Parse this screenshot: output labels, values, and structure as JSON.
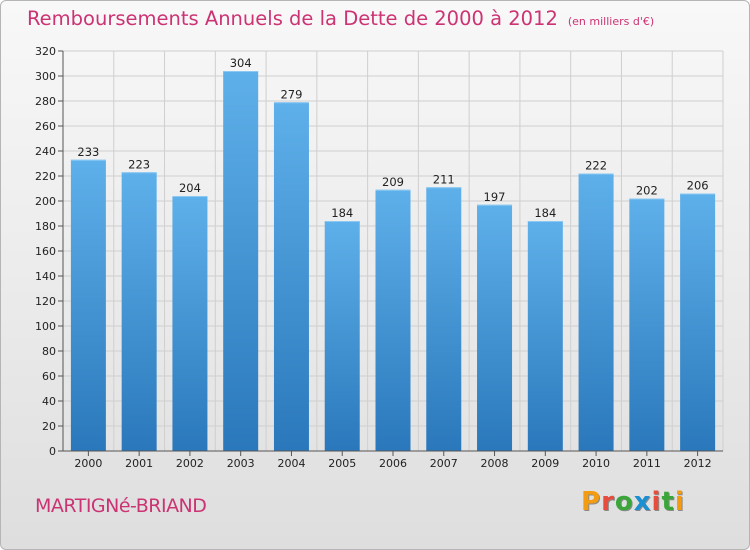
{
  "header": {
    "title": "Remboursements Annuels de la Dette de 2000 à 2012",
    "unit": "(en milliers d'€)"
  },
  "footer": {
    "commune": "MARTIGNé-BRIAND",
    "logo": "Proxiti",
    "logo_colors": [
      "#f39c12",
      "#e84c3d",
      "#3aa63a",
      "#1a8fd1",
      "#e84c3d",
      "#3aa63a",
      "#f39c12"
    ]
  },
  "chart_data": {
    "type": "bar",
    "title": "Remboursements Annuels de la Dette de 2000 à 2012",
    "subtitle": "(en milliers d'€)",
    "categories": [
      "2000",
      "2001",
      "2002",
      "2003",
      "2004",
      "2005",
      "2006",
      "2007",
      "2008",
      "2009",
      "2010",
      "2011",
      "2012"
    ],
    "values": [
      233,
      223,
      204,
      304,
      279,
      184,
      209,
      211,
      197,
      184,
      222,
      202,
      206
    ],
    "ylim": [
      0,
      320
    ],
    "yticks": [
      0,
      20,
      40,
      60,
      80,
      100,
      120,
      140,
      160,
      180,
      200,
      220,
      240,
      260,
      280,
      300,
      320
    ],
    "grid": true,
    "bar_color": "#3d8fd4",
    "data_labels": true
  }
}
